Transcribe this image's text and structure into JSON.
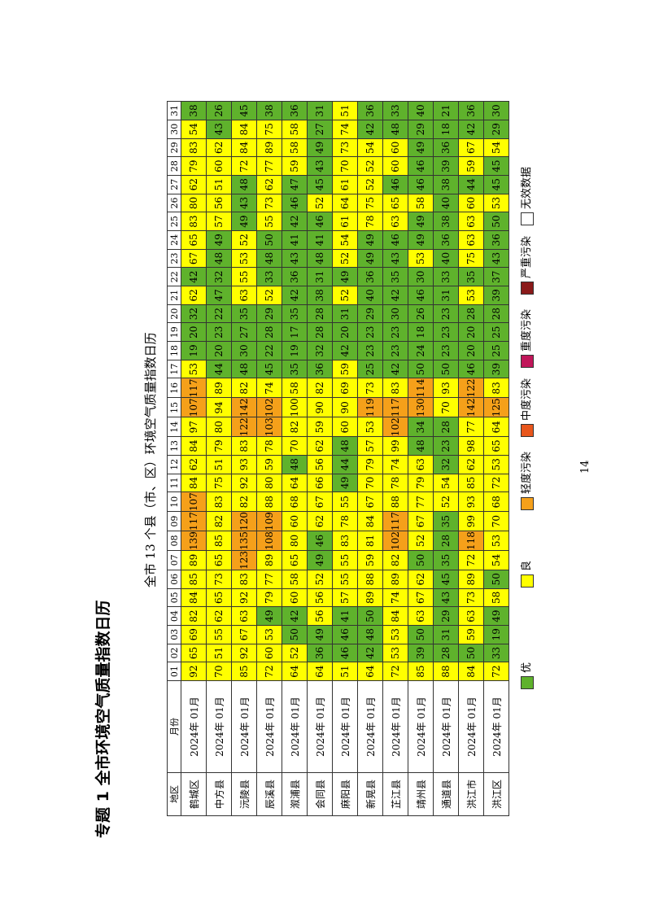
{
  "title": "专题 1 全市环境空气质量指数日历",
  "subtitle": "全市 13 个县（市、区）环境空气质量指数日历",
  "table": {
    "header": [
      "地区",
      "月份"
    ],
    "days": [
      "01",
      "02",
      "03",
      "04",
      "05",
      "06",
      "07",
      "08",
      "09",
      "10",
      "11",
      "12",
      "13",
      "14",
      "15",
      "16",
      "17",
      "18",
      "19",
      "20",
      "21",
      "22",
      "23",
      "24",
      "25",
      "26",
      "27",
      "28",
      "29",
      "30",
      "31"
    ],
    "rows": [
      {
        "region": "鹤城区",
        "month": "2024年 01月",
        "values": [
          92,
          65,
          69,
          82,
          84,
          85,
          89,
          139,
          117,
          107,
          84,
          62,
          84,
          97,
          107,
          117,
          53,
          19,
          20,
          32,
          62,
          42,
          67,
          65,
          83,
          80,
          62,
          79,
          83,
          54,
          38
        ]
      },
      {
        "region": "中方县",
        "month": "2024年 01月",
        "values": [
          70,
          51,
          55,
          62,
          65,
          73,
          65,
          85,
          82,
          83,
          75,
          51,
          79,
          80,
          94,
          89,
          44,
          20,
          23,
          22,
          47,
          32,
          48,
          49,
          57,
          56,
          51,
          60,
          62,
          43,
          26
        ]
      },
      {
        "region": "沅陵县",
        "month": "2024年 01月",
        "values": [
          85,
          92,
          67,
          63,
          92,
          83,
          123,
          135,
          120,
          82,
          92,
          93,
          83,
          122,
          142,
          82,
          48,
          30,
          27,
          35,
          63,
          55,
          53,
          52,
          49,
          43,
          48,
          72,
          84,
          84,
          45
        ]
      },
      {
        "region": "辰溪县",
        "month": "2024年 01月",
        "values": [
          72,
          60,
          53,
          49,
          79,
          77,
          89,
          108,
          109,
          88,
          80,
          59,
          78,
          103,
          102,
          74,
          45,
          22,
          28,
          29,
          52,
          33,
          48,
          50,
          55,
          73,
          62,
          77,
          89,
          75,
          38
        ]
      },
      {
        "region": "溆浦县",
        "month": "2024年 01月",
        "values": [
          64,
          52,
          50,
          42,
          60,
          58,
          65,
          80,
          60,
          68,
          64,
          48,
          70,
          82,
          100,
          58,
          35,
          19,
          17,
          35,
          42,
          36,
          43,
          41,
          42,
          46,
          47,
          59,
          58,
          58,
          36
        ]
      },
      {
        "region": "会同县",
        "month": "2024年 01月",
        "values": [
          64,
          36,
          49,
          56,
          56,
          52,
          49,
          46,
          62,
          67,
          66,
          56,
          62,
          59,
          90,
          82,
          36,
          32,
          28,
          28,
          38,
          31,
          48,
          41,
          46,
          52,
          45,
          43,
          49,
          27,
          31
        ]
      },
      {
        "region": "麻阳县",
        "month": "2024年 01月",
        "values": [
          51,
          46,
          46,
          41,
          57,
          55,
          55,
          83,
          78,
          55,
          49,
          44,
          48,
          60,
          90,
          69,
          59,
          42,
          20,
          31,
          52,
          49,
          52,
          54,
          61,
          64,
          61,
          70,
          73,
          74,
          51
        ]
      },
      {
        "region": "新晃县",
        "month": "2024年 01月",
        "values": [
          64,
          42,
          48,
          50,
          89,
          88,
          59,
          81,
          84,
          67,
          70,
          79,
          57,
          53,
          119,
          73,
          25,
          23,
          23,
          29,
          40,
          36,
          49,
          49,
          78,
          75,
          52,
          52,
          54,
          42,
          36
        ]
      },
      {
        "region": "芷江县",
        "month": "2024年 01月",
        "values": [
          72,
          53,
          53,
          84,
          74,
          89,
          82,
          102,
          117,
          88,
          78,
          74,
          99,
          102,
          117,
          83,
          42,
          23,
          23,
          30,
          42,
          35,
          43,
          46,
          63,
          65,
          46,
          60,
          60,
          48,
          33
        ]
      },
      {
        "region": "靖州县",
        "month": "2024年 01月",
        "values": [
          85,
          39,
          50,
          63,
          67,
          62,
          50,
          52,
          67,
          77,
          79,
          63,
          48,
          34,
          130,
          114,
          50,
          24,
          18,
          26,
          46,
          30,
          53,
          49,
          49,
          58,
          46,
          46,
          49,
          29,
          40
        ]
      },
      {
        "region": "通道县",
        "month": "2024年 01月",
        "values": [
          88,
          28,
          31,
          29,
          43,
          45,
          35,
          28,
          35,
          52,
          54,
          32,
          23,
          28,
          70,
          93,
          50,
          23,
          23,
          23,
          31,
          33,
          40,
          36,
          38,
          40,
          38,
          39,
          36,
          18,
          21
        ]
      },
      {
        "region": "洪江市",
        "month": "2024年 01月",
        "values": [
          84,
          50,
          59,
          63,
          73,
          89,
          72,
          118,
          99,
          93,
          85,
          62,
          98,
          77,
          142,
          122,
          46,
          20,
          20,
          28,
          53,
          35,
          75,
          63,
          63,
          60,
          44,
          59,
          67,
          42,
          36
        ]
      },
      {
        "region": "洪江区",
        "month": "2024年 01月",
        "values": [
          72,
          33,
          19,
          49,
          58,
          50,
          54,
          53,
          70,
          68,
          72,
          53,
          65,
          64,
          125,
          83,
          39,
          25,
          25,
          28,
          39,
          37,
          43,
          36,
          50,
          53,
          45,
          45,
          54,
          29,
          30
        ]
      }
    ]
  },
  "legend": [
    {
      "label": "优",
      "color": "#5fb22c"
    },
    {
      "label": "良",
      "color": "#ffff00"
    },
    {
      "label": "轻度污染",
      "color": "#f5a01a"
    },
    {
      "label": "中度污染",
      "color": "#e8561c"
    },
    {
      "label": "重度污染",
      "color": "#c0165a"
    },
    {
      "label": "严重污染",
      "color": "#8a1a1a"
    },
    {
      "label": "无效数据",
      "color": "#ffffff"
    }
  ],
  "page_number": "14"
}
